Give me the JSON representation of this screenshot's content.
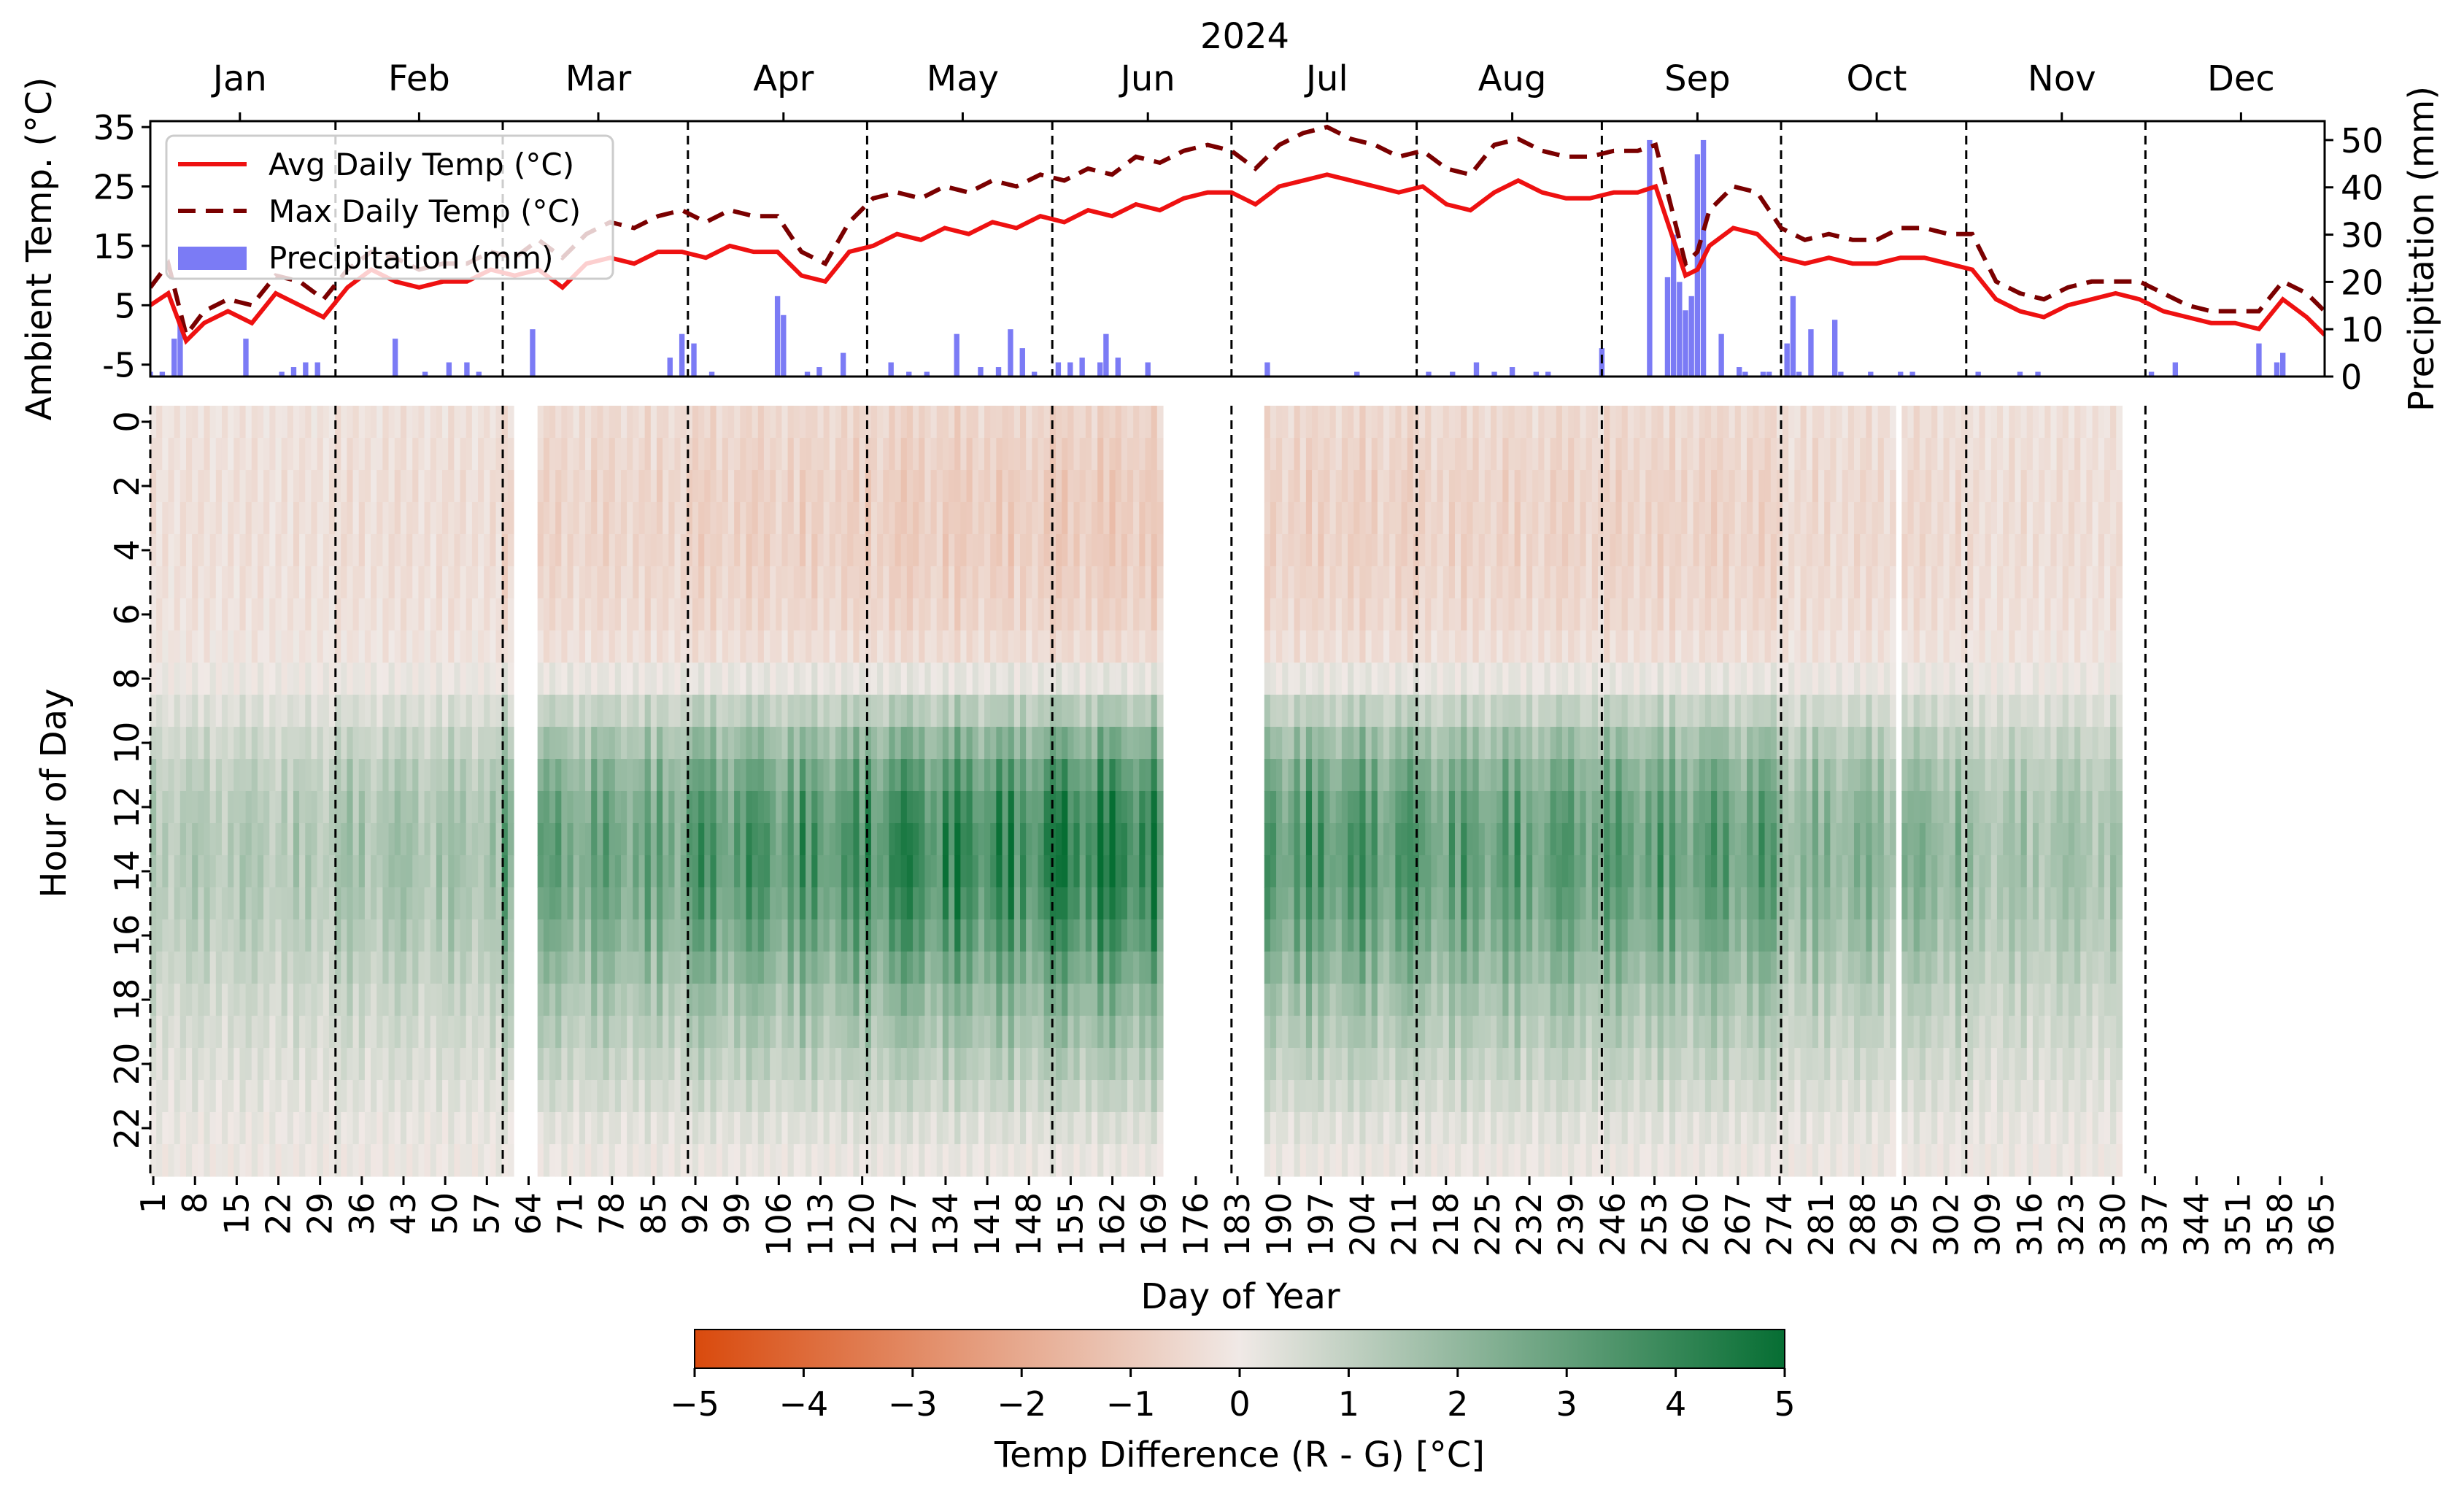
{
  "chart_data": [
    {
      "type": "line",
      "panel": "ambient",
      "title": "2024",
      "ylabel": "Ambient Temp. (°C)",
      "ylabel_right": "Precipitation (mm)",
      "ylim": [
        -7,
        36
      ],
      "ylim_right": [
        0,
        54
      ],
      "yticks": [
        -5,
        5,
        15,
        25,
        35
      ],
      "yticks_right": [
        0,
        10,
        20,
        30,
        40,
        50
      ],
      "xlim": [
        1,
        365
      ],
      "month_labels": [
        "Jan",
        "Feb",
        "Mar",
        "Apr",
        "May",
        "Jun",
        "Jul",
        "Aug",
        "Sep",
        "Oct",
        "Nov",
        "Dec"
      ],
      "month_centers": [
        16,
        46,
        76,
        107,
        137,
        168,
        198,
        229,
        260,
        290,
        321,
        351
      ],
      "month_boundaries": [
        32,
        60,
        91,
        121,
        152,
        182,
        213,
        244,
        274,
        305,
        335
      ],
      "legend": {
        "placement": "upper-left",
        "entries": [
          "Avg Daily Temp (°C)",
          "Max Daily Temp (°C)",
          "Precipitation (mm)"
        ]
      },
      "grid": false,
      "colors": {
        "avg": "#ee1111",
        "max": "#7a0000",
        "precip": "#7b7bf5"
      },
      "series": [
        {
          "name": "Avg Daily Temp (°C)",
          "style": "solid",
          "x": [
            1,
            4,
            7,
            10,
            14,
            18,
            22,
            26,
            30,
            34,
            38,
            42,
            46,
            50,
            54,
            58,
            62,
            66,
            70,
            74,
            78,
            82,
            86,
            90,
            94,
            98,
            102,
            106,
            110,
            114,
            118,
            122,
            126,
            130,
            134,
            138,
            142,
            146,
            150,
            154,
            158,
            162,
            166,
            170,
            174,
            178,
            182,
            186,
            190,
            194,
            198,
            202,
            206,
            210,
            214,
            218,
            222,
            226,
            230,
            234,
            238,
            242,
            246,
            250,
            253,
            256,
            258,
            260,
            262,
            266,
            270,
            274,
            278,
            282,
            286,
            290,
            294,
            298,
            302,
            306,
            310,
            314,
            318,
            322,
            326,
            330,
            334,
            338,
            342,
            346,
            350,
            354,
            358,
            362,
            365
          ],
          "values": [
            5,
            7,
            -1,
            2,
            4,
            2,
            7,
            5,
            3,
            8,
            11,
            9,
            8,
            9,
            9,
            11,
            10,
            11,
            8,
            12,
            13,
            12,
            14,
            14,
            13,
            15,
            14,
            14,
            10,
            9,
            14,
            15,
            17,
            16,
            18,
            17,
            19,
            18,
            20,
            19,
            21,
            20,
            22,
            21,
            23,
            24,
            24,
            22,
            25,
            26,
            27,
            26,
            25,
            24,
            25,
            22,
            21,
            24,
            26,
            24,
            23,
            23,
            24,
            24,
            25,
            16,
            10,
            11,
            15,
            18,
            17,
            13,
            12,
            13,
            12,
            12,
            13,
            13,
            12,
            11,
            6,
            4,
            3,
            5,
            6,
            7,
            6,
            4,
            3,
            2,
            2,
            1,
            6,
            3,
            0
          ]
        },
        {
          "name": "Max Daily Temp (°C)",
          "style": "dashed",
          "x": [
            1,
            4,
            7,
            10,
            14,
            18,
            22,
            26,
            30,
            34,
            38,
            42,
            46,
            50,
            54,
            58,
            62,
            66,
            70,
            74,
            78,
            82,
            86,
            90,
            94,
            98,
            102,
            106,
            110,
            114,
            118,
            122,
            126,
            130,
            134,
            138,
            142,
            146,
            150,
            154,
            158,
            162,
            166,
            170,
            174,
            178,
            182,
            186,
            190,
            194,
            198,
            202,
            206,
            210,
            214,
            218,
            222,
            226,
            230,
            234,
            238,
            242,
            246,
            250,
            253,
            256,
            258,
            260,
            262,
            266,
            270,
            274,
            278,
            282,
            286,
            290,
            294,
            298,
            302,
            306,
            310,
            314,
            318,
            322,
            326,
            330,
            334,
            338,
            342,
            346,
            350,
            354,
            358,
            362,
            365
          ],
          "values": [
            8,
            12,
            0,
            4,
            6,
            5,
            10,
            9,
            6,
            11,
            14,
            13,
            11,
            12,
            12,
            14,
            13,
            16,
            13,
            17,
            19,
            18,
            20,
            21,
            19,
            21,
            20,
            20,
            14,
            12,
            19,
            23,
            24,
            23,
            25,
            24,
            26,
            25,
            27,
            26,
            28,
            27,
            30,
            29,
            31,
            32,
            31,
            28,
            32,
            34,
            35,
            33,
            32,
            30,
            31,
            28,
            27,
            32,
            33,
            31,
            30,
            30,
            31,
            31,
            32,
            20,
            12,
            14,
            21,
            25,
            24,
            18,
            16,
            17,
            16,
            16,
            18,
            18,
            17,
            17,
            9,
            7,
            6,
            8,
            9,
            9,
            9,
            7,
            5,
            4,
            4,
            4,
            9,
            7,
            4
          ]
        },
        {
          "name": "Precipitation (mm)",
          "type": "bar",
          "axis": "right",
          "x": [
            1,
            3,
            5,
            6,
            17,
            23,
            25,
            27,
            29,
            42,
            47,
            51,
            54,
            56,
            65,
            88,
            90,
            92,
            95,
            106,
            107,
            111,
            113,
            117,
            125,
            128,
            131,
            136,
            140,
            143,
            145,
            147,
            149,
            153,
            155,
            157,
            160,
            161,
            163,
            168,
            188,
            203,
            215,
            219,
            223,
            226,
            229,
            233,
            235,
            244,
            252,
            255,
            256,
            257,
            258,
            259,
            260,
            261,
            264,
            267,
            268,
            271,
            272,
            275,
            276,
            277,
            279,
            283,
            284,
            289,
            294,
            296,
            307,
            314,
            317,
            336,
            340,
            354,
            357,
            358
          ],
          "values": [
            1,
            1,
            8,
            12,
            8,
            1,
            2,
            3,
            3,
            8,
            1,
            3,
            3,
            1,
            10,
            4,
            9,
            7,
            1,
            17,
            13,
            1,
            2,
            5,
            3,
            1,
            1,
            9,
            2,
            2,
            10,
            6,
            1,
            3,
            3,
            4,
            3,
            9,
            4,
            3,
            3,
            1,
            1,
            1,
            3,
            1,
            2,
            1,
            1,
            6,
            50,
            21,
            30,
            20,
            14,
            17,
            47,
            50,
            9,
            2,
            1,
            1,
            1,
            7,
            17,
            1,
            10,
            12,
            1,
            1,
            1,
            1,
            1,
            1,
            1,
            1,
            3,
            7,
            3,
            5
          ]
        }
      ]
    },
    {
      "type": "heatmap",
      "panel": "heatmap",
      "xlabel": "Day of Year",
      "ylabel": "Hour of Day",
      "x_ticks": [
        1,
        8,
        15,
        22,
        29,
        36,
        43,
        50,
        57,
        64,
        71,
        78,
        85,
        92,
        99,
        106,
        113,
        120,
        127,
        134,
        141,
        148,
        155,
        162,
        169,
        176,
        183,
        190,
        197,
        204,
        211,
        218,
        225,
        232,
        239,
        246,
        253,
        260,
        267,
        274,
        281,
        288,
        295,
        302,
        309,
        316,
        323,
        330,
        337,
        344,
        351,
        358,
        365
      ],
      "y_ticks": [
        0,
        2,
        4,
        6,
        8,
        10,
        12,
        14,
        16,
        18,
        20,
        22
      ],
      "xlim": [
        1,
        365
      ],
      "ylim": [
        0,
        24
      ],
      "vlines_days": [
        32,
        60,
        91,
        121,
        152,
        182,
        213,
        244,
        274,
        305,
        335
      ],
      "missing_day_ranges": [
        [
          62,
          65
        ],
        [
          171,
          187
        ],
        [
          294,
          294
        ],
        [
          332,
          365
        ]
      ],
      "diurnal_profile": [
        -0.6,
        -0.7,
        -0.8,
        -0.8,
        -0.8,
        -0.7,
        -0.6,
        -0.4,
        0.2,
        0.9,
        1.6,
        2.2,
        2.6,
        2.8,
        2.8,
        2.6,
        2.3,
        1.9,
        1.5,
        1.2,
        0.9,
        0.6,
        0.3,
        0.1
      ],
      "monthly_amplitude": [
        0.45,
        0.55,
        0.95,
        1.15,
        1.35,
        1.45,
        1.15,
        1.05,
        1.05,
        0.75,
        0.55,
        0.5
      ],
      "colorbar": {
        "label": "Temp Difference (R - G) [°C]",
        "min": -5,
        "max": 5,
        "ticks": [
          "−5",
          "−4",
          "−3",
          "−2",
          "−1",
          "0",
          "1",
          "2",
          "3",
          "4",
          "5"
        ],
        "tick_values": [
          -5,
          -4,
          -3,
          -2,
          -1,
          0,
          1,
          2,
          3,
          4,
          5
        ],
        "colors": [
          "#d94a0d",
          "#f0e9e6",
          "#066e33"
        ]
      }
    }
  ]
}
